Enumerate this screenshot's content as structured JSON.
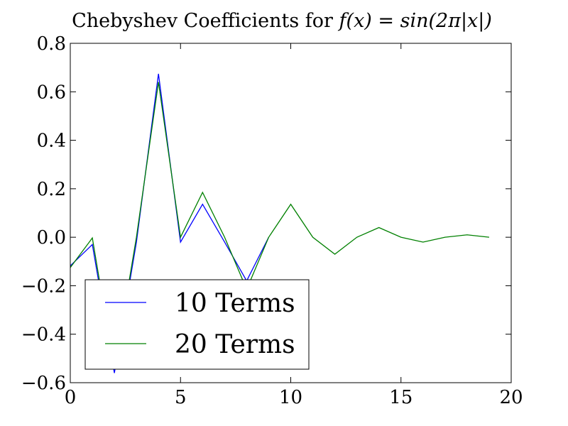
{
  "chart_data": {
    "type": "line",
    "title_prefix": "Chebyshev Coefficients for ",
    "title_math": "f(x) = sin(2π|x|)",
    "xlabel": "",
    "ylabel": "",
    "xlim": [
      0,
      20
    ],
    "ylim": [
      -0.6,
      0.8
    ],
    "xticks": [
      0,
      5,
      10,
      15,
      20
    ],
    "xtick_labels": [
      "0",
      "5",
      "10",
      "15",
      "20"
    ],
    "yticks": [
      -0.6,
      -0.4,
      -0.2,
      0.0,
      0.2,
      0.4,
      0.6,
      0.8
    ],
    "ytick_labels": [
      "−0.6",
      "−0.4",
      "−0.2",
      "0.0",
      "0.2",
      "0.4",
      "0.6",
      "0.8"
    ],
    "grid": false,
    "legend_position": "lower-left",
    "series": [
      {
        "name": "10 Terms",
        "color": "#0000ff",
        "x": [
          0,
          1,
          2,
          3,
          4,
          5,
          6,
          7,
          8,
          9
        ],
        "y": [
          -0.118,
          -0.03,
          -0.56,
          -0.02,
          0.674,
          -0.02,
          0.136,
          -0.02,
          -0.18,
          0.0
        ]
      },
      {
        "name": "20 Terms",
        "color": "#008000",
        "x": [
          0,
          1,
          2,
          3,
          4,
          5,
          6,
          7,
          8,
          9,
          10,
          11,
          12,
          13,
          14,
          15,
          16,
          17,
          18,
          19
        ],
        "y": [
          -0.125,
          -0.003,
          -0.545,
          0.0,
          0.64,
          0.0,
          0.185,
          0.0,
          -0.215,
          0.0,
          0.136,
          0.0,
          -0.07,
          0.0,
          0.04,
          0.0,
          -0.02,
          0.0,
          0.01,
          0.0
        ]
      }
    ]
  }
}
